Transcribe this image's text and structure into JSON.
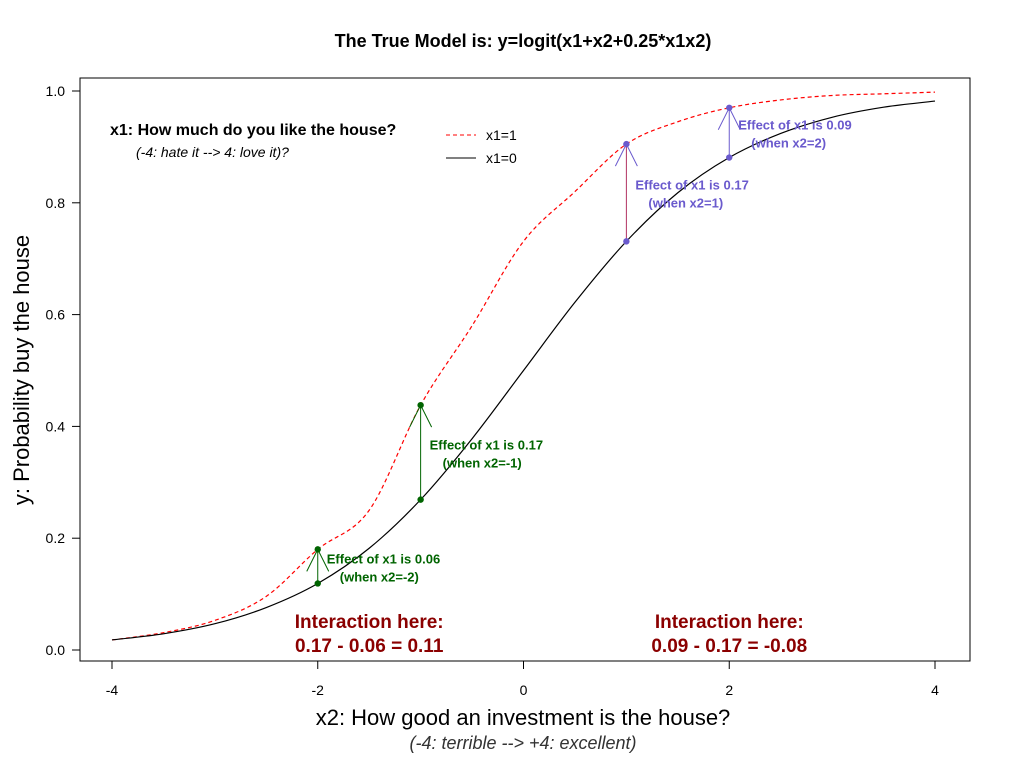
{
  "chart_data": {
    "type": "line",
    "title": "The True Model is: y=logit(x1+x2+0.25*x1x2)",
    "xlabel": "x2: How good an investment is the house?",
    "xlabel_sub": "(-4: terrible --> +4: excellent)",
    "ylabel": "y: Probability buy the house",
    "xlim": [
      -4,
      4
    ],
    "ylim": [
      0,
      1
    ],
    "x_ticks": [
      "-4",
      "-2",
      "0",
      "2",
      "4"
    ],
    "y_ticks": [
      "0.0",
      "0.2",
      "0.4",
      "0.6",
      "0.8",
      "1.0"
    ],
    "grid": false,
    "legend_position": "top-left",
    "legend": {
      "title": "x1: How much do you like the house?",
      "subtitle": "(-4: hate it --> 4: love it)?",
      "entries": [
        "x1=1",
        "x1=0"
      ]
    },
    "series": [
      {
        "name": "x1=1",
        "color": "#ff0000",
        "line_style": "dashed",
        "x": [
          -4,
          -3.5,
          -3,
          -2.5,
          -2,
          -1.5,
          -1,
          -0.5,
          0,
          0.5,
          1,
          1.5,
          2,
          2.5,
          3,
          3.5,
          4
        ],
        "y": [
          0.018,
          0.031,
          0.053,
          0.096,
          0.18,
          0.25,
          0.438,
          0.58,
          0.731,
          0.82,
          0.905,
          0.945,
          0.97,
          0.984,
          0.992,
          0.995,
          0.998
        ]
      },
      {
        "name": "x1=0",
        "color": "#000000",
        "line_style": "solid",
        "x": [
          -4,
          -3.5,
          -3,
          -2.5,
          -2,
          -1.5,
          -1,
          -0.5,
          0,
          0.5,
          1,
          1.5,
          2,
          2.5,
          3,
          3.5,
          4
        ],
        "y": [
          0.018,
          0.029,
          0.047,
          0.076,
          0.119,
          0.182,
          0.269,
          0.378,
          0.5,
          0.622,
          0.731,
          0.818,
          0.881,
          0.924,
          0.953,
          0.971,
          0.982
        ]
      }
    ],
    "effects": [
      {
        "x": -2,
        "y0": 0.119,
        "y1": 0.18,
        "color": "#006400",
        "line1": "Effect of x1 is 0.06",
        "line2": "(when x2=-2)"
      },
      {
        "x": -1,
        "y0": 0.269,
        "y1": 0.438,
        "color": "#006400",
        "line1": "Effect of x1 is 0.17",
        "line2": "(when x2=-1)"
      },
      {
        "x": 1,
        "y0": 0.731,
        "y1": 0.905,
        "color": "#6a5acd",
        "line1": "Effect of x1 is 0.17",
        "line2": "(when x2=1)"
      },
      {
        "x": 2,
        "y0": 0.881,
        "y1": 0.97,
        "color": "#6a5acd",
        "line1": "Effect of x1 is 0.09",
        "line2": "(when x2=2)"
      }
    ],
    "interactions": [
      {
        "x": -1.5,
        "line1": "Interaction here:",
        "line2": "0.17 - 0.06 = 0.11"
      },
      {
        "x": 2.0,
        "line1": "Interaction here:",
        "line2": "0.09 - 0.17 = -0.08"
      }
    ]
  }
}
